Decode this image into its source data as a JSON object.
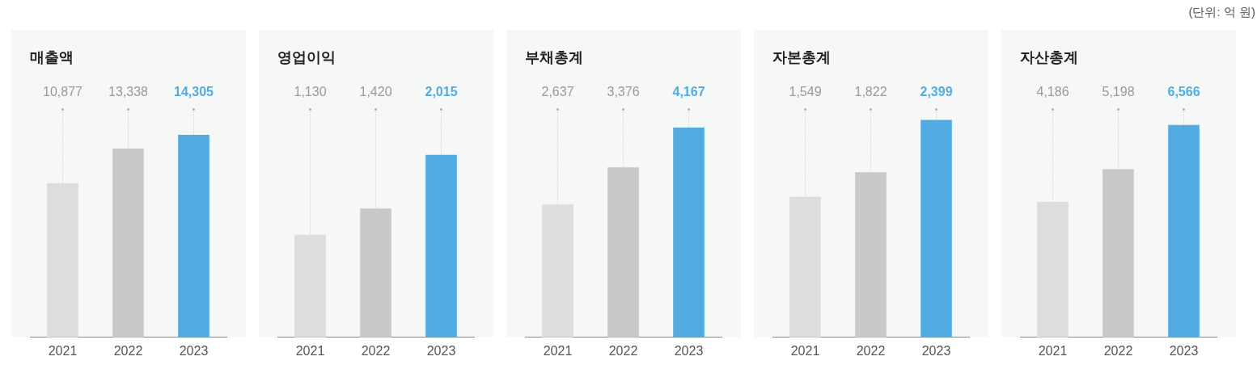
{
  "chart_data": [
    {
      "type": "bar",
      "title": "매출액",
      "categories": [
        "2021",
        "2022",
        "2023"
      ],
      "values": [
        10877,
        13338,
        14305
      ],
      "value_labels": [
        "10,877",
        "13,338",
        "14,305"
      ],
      "colors": [
        "#dcdddc",
        "#c8c9c8",
        "#52ace1"
      ],
      "tick_labels": "x",
      "legend": false
    },
    {
      "type": "bar",
      "title": "영업이익",
      "categories": [
        "2021",
        "2022",
        "2023"
      ],
      "values": [
        1130,
        1420,
        2015
      ],
      "value_labels": [
        "1,130",
        "1,420",
        "2,015"
      ],
      "colors": [
        "#dcdddc",
        "#c8c9c8",
        "#52ace1"
      ],
      "tick_labels": "x",
      "legend": false
    },
    {
      "type": "bar",
      "title": "부채총계",
      "categories": [
        "2021",
        "2022",
        "2023"
      ],
      "values": [
        2637,
        3376,
        4167
      ],
      "value_labels": [
        "2,637",
        "3,376",
        "4,167"
      ],
      "colors": [
        "#dcdddc",
        "#c8c9c8",
        "#52ace1"
      ],
      "tick_labels": "x",
      "legend": false
    },
    {
      "type": "bar",
      "title": "자본총계",
      "categories": [
        "2021",
        "2022",
        "2023"
      ],
      "values": [
        1549,
        1822,
        2399
      ],
      "value_labels": [
        "1,549",
        "1,822",
        "2,399"
      ],
      "colors": [
        "#dcdddc",
        "#c8c9c8",
        "#52ace1"
      ],
      "tick_labels": "x",
      "legend": false
    },
    {
      "type": "bar",
      "title": "자산총계",
      "categories": [
        "2021",
        "2022",
        "2023"
      ],
      "values": [
        4186,
        5198,
        6566
      ],
      "value_labels": [
        "4,186",
        "5,198",
        "6,566"
      ],
      "colors": [
        "#dcdddc",
        "#c8c9c8",
        "#52ace1"
      ],
      "tick_labels": "x",
      "legend": false,
      "annotations": [
        "(단위: 억 원)"
      ]
    }
  ]
}
